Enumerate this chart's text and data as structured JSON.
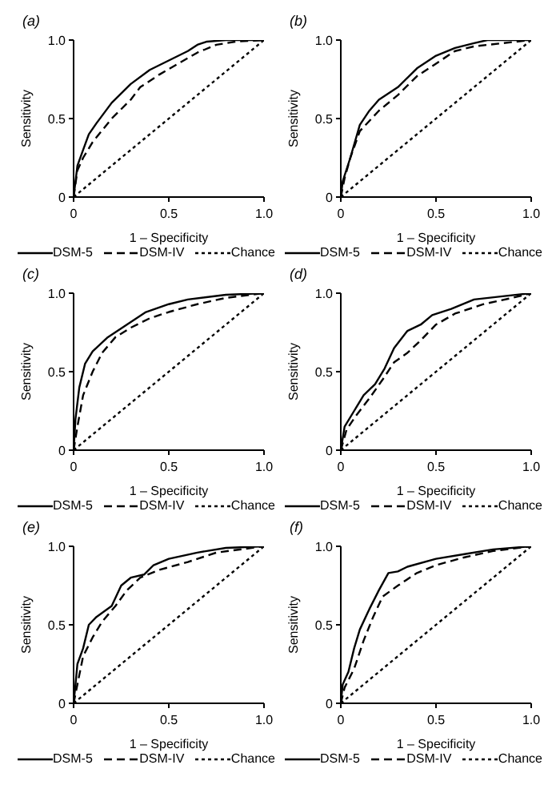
{
  "chart_data": [
    {
      "type": "line",
      "title": "(a)",
      "xlabel": "1 – Specificity",
      "ylabel": "Sensitivity",
      "xlim": [
        0,
        1
      ],
      "ylim": [
        0,
        1
      ],
      "xticks": [
        {
          "value": 0,
          "label": "0"
        },
        {
          "value": 0.5,
          "label": "0.5"
        },
        {
          "value": 1,
          "label": "1.0"
        }
      ],
      "yticks": [
        {
          "value": 0,
          "label": "0"
        },
        {
          "value": 0.5,
          "label": "0.5"
        },
        {
          "value": 1,
          "label": "1.0"
        }
      ],
      "grid": false,
      "legend": "bottom",
      "marker": "none",
      "series": [
        {
          "name": "DSM-5",
          "color": "#000000",
          "line_style": "solid",
          "x": [
            0,
            0.01,
            0.02,
            0.05,
            0.08,
            0.12,
            0.2,
            0.3,
            0.4,
            0.5,
            0.6,
            0.65,
            0.7,
            0.8,
            1
          ],
          "values": [
            0,
            0.1,
            0.2,
            0.3,
            0.4,
            0.47,
            0.6,
            0.72,
            0.81,
            0.87,
            0.93,
            0.97,
            0.99,
            1,
            1
          ]
        },
        {
          "name": "DSM-IV",
          "color": "#000000",
          "line_style": "dashed",
          "x": [
            0,
            0.02,
            0.05,
            0.1,
            0.2,
            0.3,
            0.35,
            0.45,
            0.55,
            0.65,
            0.75,
            0.85,
            1
          ],
          "values": [
            0,
            0.17,
            0.25,
            0.35,
            0.5,
            0.62,
            0.7,
            0.78,
            0.85,
            0.92,
            0.97,
            0.99,
            1
          ]
        },
        {
          "name": "Chance",
          "color": "#000000",
          "line_style": "dotted",
          "x": [
            0,
            1
          ],
          "values": [
            0,
            1
          ]
        }
      ]
    },
    {
      "type": "line",
      "title": "(b)",
      "xlabel": "1 – Specificity",
      "ylabel": "Sensitivity",
      "xlim": [
        0,
        1
      ],
      "ylim": [
        0,
        1
      ],
      "xticks": [
        {
          "value": 0,
          "label": "0"
        },
        {
          "value": 0.5,
          "label": "0.5"
        },
        {
          "value": 1,
          "label": "1.0"
        }
      ],
      "yticks": [
        {
          "value": 0,
          "label": "0"
        },
        {
          "value": 0.5,
          "label": "0.5"
        },
        {
          "value": 1,
          "label": "1.0"
        }
      ],
      "grid": false,
      "legend": "bottom",
      "marker": "none",
      "series": [
        {
          "name": "DSM-5",
          "color": "#000000",
          "line_style": "solid",
          "x": [
            0,
            0.01,
            0.05,
            0.1,
            0.15,
            0.2,
            0.3,
            0.4,
            0.5,
            0.6,
            0.7,
            0.77,
            1
          ],
          "values": [
            0,
            0.1,
            0.25,
            0.46,
            0.55,
            0.62,
            0.7,
            0.82,
            0.9,
            0.95,
            0.98,
            1,
            1
          ]
        },
        {
          "name": "DSM-IV",
          "color": "#000000",
          "line_style": "dashed",
          "x": [
            0,
            0.02,
            0.05,
            0.1,
            0.2,
            0.3,
            0.4,
            0.5,
            0.6,
            0.7,
            0.85,
            1
          ],
          "values": [
            0,
            0.12,
            0.25,
            0.42,
            0.55,
            0.65,
            0.77,
            0.85,
            0.93,
            0.96,
            0.98,
            1
          ]
        },
        {
          "name": "Chance",
          "color": "#000000",
          "line_style": "dotted",
          "x": [
            0,
            1
          ],
          "values": [
            0,
            1
          ]
        }
      ]
    },
    {
      "type": "line",
      "title": "(c)",
      "xlabel": "1 – Specificity",
      "ylabel": "Sensitivity",
      "xlim": [
        0,
        1
      ],
      "ylim": [
        0,
        1
      ],
      "xticks": [
        {
          "value": 0,
          "label": "0"
        },
        {
          "value": 0.5,
          "label": "0.5"
        },
        {
          "value": 1,
          "label": "1.0"
        }
      ],
      "yticks": [
        {
          "value": 0,
          "label": "0"
        },
        {
          "value": 0.5,
          "label": "0.5"
        },
        {
          "value": 1,
          "label": "1.0"
        }
      ],
      "grid": false,
      "legend": "bottom",
      "marker": "none",
      "series": [
        {
          "name": "DSM-5",
          "color": "#000000",
          "line_style": "solid",
          "x": [
            0,
            0.01,
            0.03,
            0.06,
            0.1,
            0.18,
            0.28,
            0.38,
            0.5,
            0.6,
            0.8,
            1
          ],
          "values": [
            0,
            0.2,
            0.4,
            0.55,
            0.63,
            0.72,
            0.8,
            0.88,
            0.93,
            0.96,
            0.99,
            1
          ]
        },
        {
          "name": "DSM-IV",
          "color": "#000000",
          "line_style": "dashed",
          "x": [
            0,
            0.02,
            0.05,
            0.1,
            0.15,
            0.22,
            0.3,
            0.4,
            0.5,
            0.65,
            0.8,
            1
          ],
          "values": [
            0,
            0.15,
            0.35,
            0.5,
            0.62,
            0.72,
            0.78,
            0.84,
            0.88,
            0.93,
            0.97,
            1
          ]
        },
        {
          "name": "Chance",
          "color": "#000000",
          "line_style": "dotted",
          "x": [
            0,
            1
          ],
          "values": [
            0,
            1
          ]
        }
      ]
    },
    {
      "type": "line",
      "title": "(d)",
      "xlabel": "1 – Specificity",
      "ylabel": "Sensitivity",
      "xlim": [
        0,
        1
      ],
      "ylim": [
        0,
        1
      ],
      "xticks": [
        {
          "value": 0,
          "label": "0"
        },
        {
          "value": 0.5,
          "label": "0.5"
        },
        {
          "value": 1,
          "label": "1.0"
        }
      ],
      "yticks": [
        {
          "value": 0,
          "label": "0"
        },
        {
          "value": 0.5,
          "label": "0.5"
        },
        {
          "value": 1,
          "label": "1.0"
        }
      ],
      "grid": false,
      "legend": "bottom",
      "marker": "none",
      "series": [
        {
          "name": "DSM-5",
          "color": "#000000",
          "line_style": "solid",
          "x": [
            0,
            0.02,
            0.07,
            0.12,
            0.18,
            0.23,
            0.28,
            0.35,
            0.42,
            0.48,
            0.58,
            0.7,
            0.85,
            1
          ],
          "values": [
            0,
            0.15,
            0.25,
            0.35,
            0.42,
            0.52,
            0.65,
            0.76,
            0.8,
            0.86,
            0.9,
            0.96,
            0.98,
            1
          ]
        },
        {
          "name": "DSM-IV",
          "color": "#000000",
          "line_style": "dashed",
          "x": [
            0,
            0.03,
            0.08,
            0.15,
            0.22,
            0.28,
            0.35,
            0.42,
            0.5,
            0.6,
            0.75,
            0.9,
            1
          ],
          "values": [
            0,
            0.13,
            0.22,
            0.33,
            0.45,
            0.56,
            0.62,
            0.7,
            0.8,
            0.87,
            0.93,
            0.97,
            1
          ]
        },
        {
          "name": "Chance",
          "color": "#000000",
          "line_style": "dotted",
          "x": [
            0,
            1
          ],
          "values": [
            0,
            1
          ]
        }
      ]
    },
    {
      "type": "line",
      "title": "(e)",
      "xlabel": "1 – Specificity",
      "ylabel": "Sensitivity",
      "xlim": [
        0,
        1
      ],
      "ylim": [
        0,
        1
      ],
      "xticks": [
        {
          "value": 0,
          "label": "0"
        },
        {
          "value": 0.5,
          "label": "0.5"
        },
        {
          "value": 1,
          "label": "1.0"
        }
      ],
      "yticks": [
        {
          "value": 0,
          "label": "0"
        },
        {
          "value": 0.5,
          "label": "0.5"
        },
        {
          "value": 1,
          "label": "1.0"
        }
      ],
      "grid": false,
      "legend": "bottom",
      "marker": "none",
      "series": [
        {
          "name": "DSM-5",
          "color": "#000000",
          "line_style": "solid",
          "x": [
            0,
            0.01,
            0.02,
            0.05,
            0.08,
            0.12,
            0.2,
            0.25,
            0.3,
            0.37,
            0.42,
            0.5,
            0.65,
            0.8,
            1
          ],
          "values": [
            0,
            0.12,
            0.25,
            0.35,
            0.5,
            0.55,
            0.62,
            0.75,
            0.8,
            0.82,
            0.88,
            0.92,
            0.96,
            0.99,
            1
          ]
        },
        {
          "name": "DSM-IV",
          "color": "#000000",
          "line_style": "dashed",
          "x": [
            0,
            0.02,
            0.05,
            0.1,
            0.15,
            0.22,
            0.28,
            0.35,
            0.45,
            0.6,
            0.75,
            1
          ],
          "values": [
            0,
            0.12,
            0.3,
            0.42,
            0.52,
            0.62,
            0.72,
            0.8,
            0.85,
            0.9,
            0.96,
            1
          ]
        },
        {
          "name": "Chance",
          "color": "#000000",
          "line_style": "dotted",
          "x": [
            0,
            1
          ],
          "values": [
            0,
            1
          ]
        }
      ]
    },
    {
      "type": "line",
      "title": "(f)",
      "xlabel": "1 – Specificity",
      "ylabel": "Sensitivity",
      "xlim": [
        0,
        1
      ],
      "ylim": [
        0,
        1
      ],
      "xticks": [
        {
          "value": 0,
          "label": "0"
        },
        {
          "value": 0.5,
          "label": "0.5"
        },
        {
          "value": 1,
          "label": "1.0"
        }
      ],
      "yticks": [
        {
          "value": 0,
          "label": "0"
        },
        {
          "value": 0.5,
          "label": "0.5"
        },
        {
          "value": 1,
          "label": "1.0"
        }
      ],
      "grid": false,
      "legend": "bottom",
      "marker": "none",
      "series": [
        {
          "name": "DSM-5",
          "color": "#000000",
          "line_style": "solid",
          "x": [
            0,
            0.01,
            0.04,
            0.07,
            0.1,
            0.15,
            0.2,
            0.25,
            0.3,
            0.35,
            0.5,
            0.65,
            0.8,
            1
          ],
          "values": [
            0,
            0.12,
            0.2,
            0.35,
            0.47,
            0.6,
            0.72,
            0.83,
            0.84,
            0.87,
            0.92,
            0.95,
            0.98,
            1
          ]
        },
        {
          "name": "DSM-IV",
          "color": "#000000",
          "line_style": "dashed",
          "x": [
            0,
            0.02,
            0.07,
            0.12,
            0.17,
            0.22,
            0.3,
            0.4,
            0.5,
            0.65,
            0.8,
            1
          ],
          "values": [
            0,
            0.1,
            0.22,
            0.4,
            0.55,
            0.68,
            0.75,
            0.83,
            0.88,
            0.93,
            0.97,
            1
          ]
        },
        {
          "name": "Chance",
          "color": "#000000",
          "line_style": "dotted",
          "x": [
            0,
            1
          ],
          "values": [
            0,
            1
          ]
        }
      ]
    }
  ]
}
